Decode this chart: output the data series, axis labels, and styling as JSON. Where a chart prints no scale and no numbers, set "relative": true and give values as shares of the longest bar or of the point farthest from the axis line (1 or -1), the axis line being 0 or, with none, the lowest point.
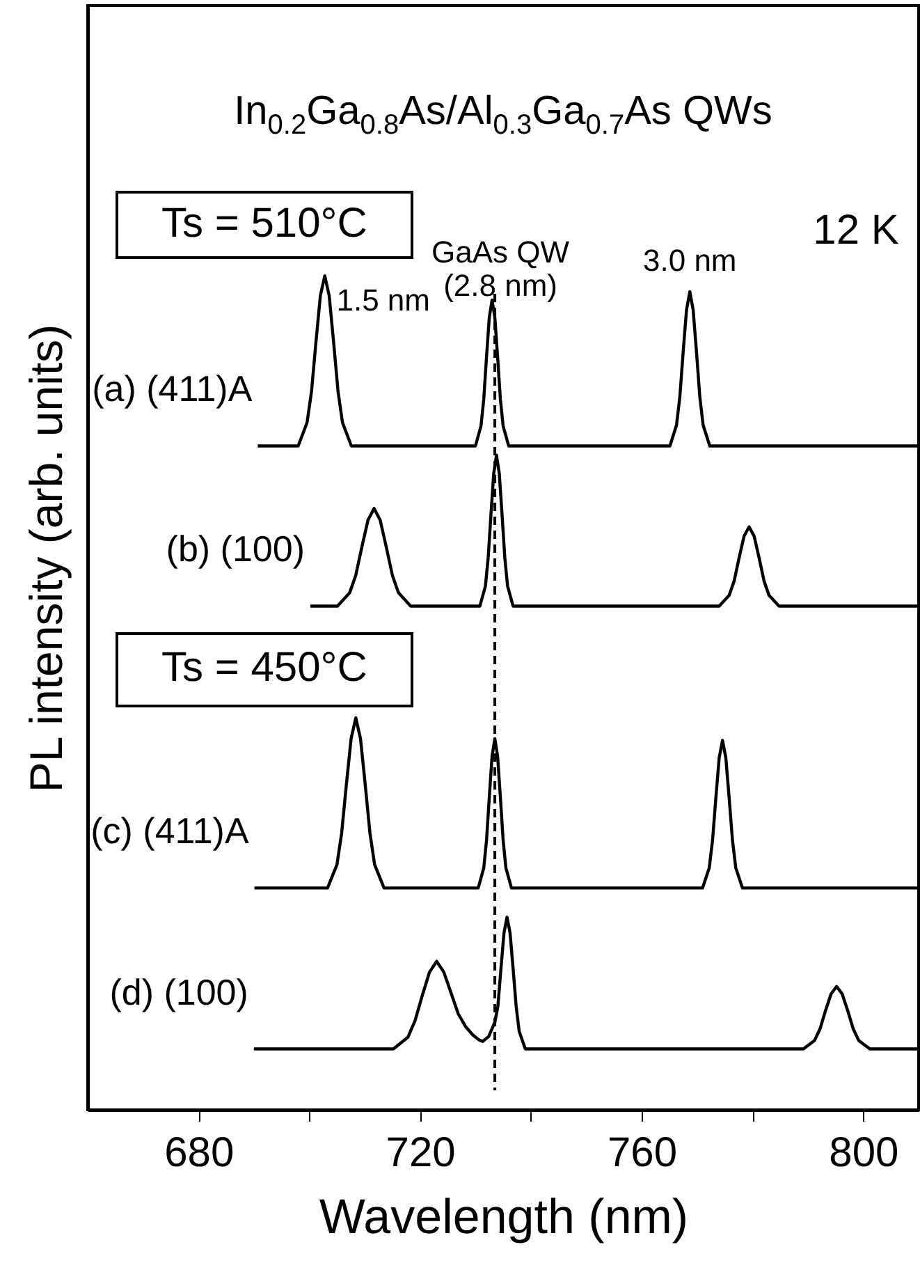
{
  "chart_data": {
    "type": "line",
    "title": "In$_{0.2}$Ga$_{0.8}$As/Al$_{0.3}$Ga$_{0.7}$As QWs",
    "xlabel": "Wavelength (nm)",
    "ylabel": "PL intensity (arb. units)",
    "relative": true,
    "tick_labels": "x",
    "xlim": [
      660,
      810
    ],
    "xticks": [
      680,
      {
        "value": 700,
        "label": null
      },
      720,
      {
        "value": 740,
        "label": null
      },
      760,
      {
        "value": 780,
        "label": null
      },
      800
    ],
    "annotations": [
      "Ts = 510°C",
      "Ts = 450°C",
      "12 K",
      {
        "text": "1.5 nm",
        "x": 702.8,
        "y": 1.0
      },
      {
        "text": "GaAs QW\n(2.8 nm)",
        "x": 733,
        "y": 0.971
      },
      {
        "text": "3.0 nm",
        "x": 768.7,
        "y": 0.981
      }
    ],
    "ref_lines": [
      {
        "axis": "x",
        "value": 733.5,
        "line_style": "dashed",
        "color": "#000000"
      }
    ],
    "series": [
      {
        "name": "(a) (411)A",
        "color": "#000000",
        "x": [
          690.7,
          698,
          699.6,
          700.4,
          701.2,
          702.0,
          702.8,
          703.6,
          704.4,
          705.2,
          706.0,
          707.6,
          730,
          731,
          731.5,
          732,
          732.5,
          733,
          733.5,
          734,
          734.5,
          735,
          736,
          765.1,
          766.3,
          766.9,
          767.5,
          768.1,
          768.7,
          769.3,
          769.9,
          770.5,
          771.1,
          772.3,
          810
        ],
        "values": [
          0.796,
          0.796,
          0.824,
          0.861,
          0.92,
          0.976,
          1.0,
          0.976,
          0.92,
          0.861,
          0.824,
          0.796,
          0.796,
          0.82,
          0.852,
          0.903,
          0.95,
          0.971,
          0.95,
          0.903,
          0.852,
          0.82,
          0.796,
          0.796,
          0.821,
          0.855,
          0.909,
          0.959,
          0.981,
          0.959,
          0.909,
          0.855,
          0.821,
          0.796,
          0.796
        ]
      },
      {
        "name": "(b) (100)",
        "color": "#000000",
        "x": [
          700.2,
          705.1,
          707.3,
          708.4,
          709.5,
          710.6,
          711.7,
          712.8,
          713.9,
          715,
          716.1,
          718.3,
          730.8,
          731.8,
          732.3,
          732.8,
          733.3,
          733.8,
          734.3,
          734.8,
          735.3,
          735.8,
          736.8,
          774,
          775.8,
          776.7,
          777.6,
          778.5,
          779.4,
          780.3,
          781.2,
          782.1,
          783,
          784.8,
          810
        ],
        "values": [
          0.604,
          0.604,
          0.62,
          0.641,
          0.675,
          0.707,
          0.721,
          0.707,
          0.675,
          0.641,
          0.62,
          0.604,
          0.604,
          0.628,
          0.662,
          0.714,
          0.763,
          0.785,
          0.763,
          0.714,
          0.662,
          0.628,
          0.604,
          0.604,
          0.617,
          0.634,
          0.662,
          0.688,
          0.699,
          0.688,
          0.662,
          0.634,
          0.617,
          0.604,
          0.604
        ]
      },
      {
        "name": "(c) (411)A",
        "color": "#000000",
        "x": [
          690.1,
          703.3,
          705,
          705.85,
          706.7,
          707.55,
          708.4,
          709.25,
          710.1,
          710.95,
          711.8,
          713.5,
          730.5,
          731.5,
          732,
          732.5,
          733,
          733.5,
          734,
          734.5,
          735,
          735.5,
          736.5,
          771,
          772.2,
          772.8,
          773.4,
          774,
          774.6,
          775.2,
          775.8,
          776.4,
          777,
          778.2,
          810
        ],
        "values": [
          0.266,
          0.266,
          0.294,
          0.332,
          0.39,
          0.445,
          0.47,
          0.445,
          0.39,
          0.332,
          0.294,
          0.266,
          0.266,
          0.29,
          0.323,
          0.375,
          0.424,
          0.445,
          0.424,
          0.375,
          0.323,
          0.29,
          0.266,
          0.266,
          0.29,
          0.323,
          0.374,
          0.422,
          0.443,
          0.422,
          0.374,
          0.323,
          0.29,
          0.266,
          0.266
        ]
      },
      {
        "name": "(d) (100)",
        "color": "#000000",
        "x": [
          690,
          715.2,
          717.8,
          719.1,
          720.4,
          721.7,
          723,
          724.3,
          725.6,
          726.9,
          728.2,
          729.5,
          730.6,
          731.3,
          732.4,
          733.5,
          734.05,
          734.6,
          735.15,
          735.7,
          736.25,
          736.8,
          737.35,
          737.9,
          739,
          789.2,
          791.2,
          792.2,
          793.2,
          794.2,
          795.2,
          796.2,
          797.2,
          798.2,
          799.2,
          801.2,
          810
        ],
        "values": [
          0.073,
          0.073,
          0.087,
          0.107,
          0.137,
          0.165,
          0.178,
          0.165,
          0.14,
          0.115,
          0.1,
          0.09,
          0.084,
          0.082,
          0.088,
          0.105,
          0.124,
          0.169,
          0.212,
          0.231,
          0.212,
          0.169,
          0.124,
          0.094,
          0.073,
          0.073,
          0.083,
          0.097,
          0.119,
          0.139,
          0.148,
          0.139,
          0.119,
          0.097,
          0.083,
          0.073,
          0.073
        ]
      }
    ]
  }
}
